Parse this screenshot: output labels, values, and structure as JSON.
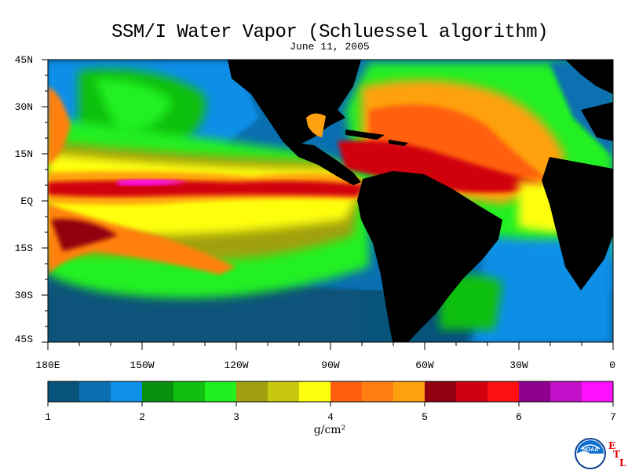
{
  "title": "SSM/I Water Vapor (Schluessel algorithm)",
  "date": "June 11, 2005",
  "lat_labels": [
    "45N",
    "30N",
    "15N",
    "EQ",
    "15S",
    "30S",
    "45S"
  ],
  "lon_labels": [
    "180E",
    "150W",
    "120W",
    "90W",
    "60W",
    "30W",
    "0"
  ],
  "colorbar": {
    "tick_labels": [
      "1",
      "2",
      "3",
      "4",
      "5",
      "6",
      "7"
    ],
    "units": "g/cm²",
    "colors": [
      "#08537a",
      "#0a6fb0",
      "#0f8fe8",
      "#0a9010",
      "#10c010",
      "#20f020",
      "#a0a010",
      "#c8c810",
      "#ffff10",
      "#ff6010",
      "#ff8010",
      "#ffa010",
      "#900010",
      "#d00010",
      "#ff1010",
      "#900090",
      "#c010c8",
      "#ff10ff"
    ]
  },
  "logo": {
    "name": "noaa-logo",
    "etl_letters": [
      "E",
      "T",
      "L"
    ]
  },
  "colors": {
    "land": "#000000",
    "background": "#ffffff"
  }
}
